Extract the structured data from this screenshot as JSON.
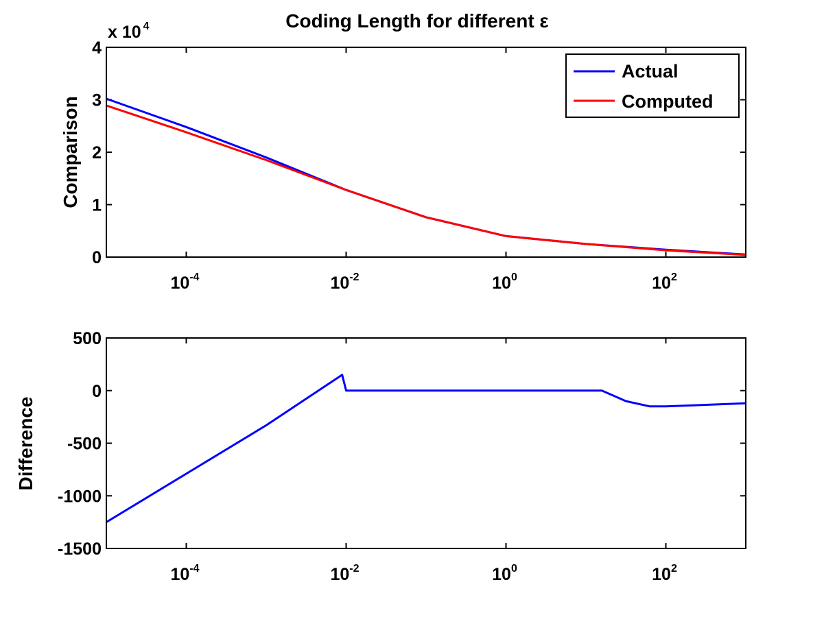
{
  "chart_data": [
    {
      "type": "line",
      "title": "Coding Length for different ε",
      "xscale": "log",
      "xlim_exp": [
        -5,
        3
      ],
      "xtick_base": "10",
      "xtick_exps": [
        "-4",
        "-2",
        "0",
        "2"
      ],
      "ylabel": "Comparison",
      "ylim": [
        0,
        4
      ],
      "yticks": [
        "0",
        "1",
        "2",
        "3",
        "4"
      ],
      "y_multiplier": "x 10",
      "y_multiplier_exp": "4",
      "legend_position": "top-right",
      "series": [
        {
          "name": "Actual",
          "color": "#0000ff",
          "x_log10": [
            -5,
            -4,
            -3,
            -2,
            -1,
            0,
            1,
            2,
            3
          ],
          "values": [
            3.02,
            2.48,
            1.9,
            1.28,
            0.76,
            0.4,
            0.25,
            0.14,
            0.05
          ]
        },
        {
          "name": "Computed",
          "color": "#ff0000",
          "x_log10": [
            -5,
            -4,
            -3,
            -2,
            -1,
            0,
            1,
            2,
            3
          ],
          "values": [
            2.89,
            2.38,
            1.85,
            1.28,
            0.76,
            0.4,
            0.25,
            0.13,
            0.04
          ]
        }
      ]
    },
    {
      "type": "line",
      "xscale": "log",
      "xlim_exp": [
        -5,
        3
      ],
      "xtick_base": "10",
      "xtick_exps": [
        "-4",
        "-2",
        "0",
        "2"
      ],
      "ylabel": "Difference",
      "ylim": [
        -1500,
        500
      ],
      "yticks": [
        "-1500",
        "-1000",
        "-500",
        "0",
        "500"
      ],
      "series": [
        {
          "name": "Difference",
          "color": "#0000ff",
          "x_log10": [
            -5,
            -4,
            -3,
            -2.05,
            -2.0,
            -1,
            0,
            1.2,
            1.5,
            1.8,
            2.0,
            3
          ],
          "values": [
            -1250,
            -790,
            -330,
            150,
            0,
            0,
            0,
            0,
            -100,
            -150,
            -150,
            -120
          ]
        }
      ]
    }
  ]
}
